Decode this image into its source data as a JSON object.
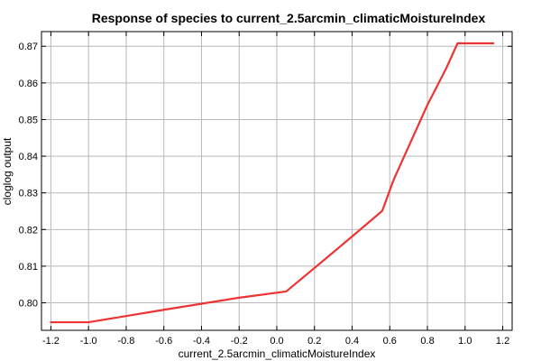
{
  "chart_data": {
    "type": "line",
    "title": "Response of species to current_2.5arcmin_climaticMoistureIndex",
    "xlabel": "current_2.5arcmin_climaticMoistureIndex",
    "ylabel": "cloglog output",
    "xlim": [
      -1.25,
      1.25
    ],
    "ylim": [
      0.7925,
      0.874
    ],
    "xticks": [
      -1.2,
      -1.0,
      -0.8,
      -0.6,
      -0.4,
      -0.2,
      0.0,
      0.2,
      0.4,
      0.6,
      0.8,
      1.0,
      1.2
    ],
    "xtick_labels": [
      "-1.2",
      "-1.0",
      "-0.8",
      "-0.6",
      "-0.4",
      "-0.2",
      "0.0",
      "0.2",
      "0.4",
      "0.6",
      "0.8",
      "1.0",
      "1.2"
    ],
    "yticks": [
      0.8,
      0.81,
      0.82,
      0.83,
      0.84,
      0.85,
      0.86,
      0.87
    ],
    "ytick_labels": [
      "0.80",
      "0.81",
      "0.82",
      "0.83",
      "0.84",
      "0.85",
      "0.86",
      "0.87"
    ],
    "grid": true,
    "series": [
      {
        "color": "#ee3333",
        "x": [
          -1.2,
          -1.0,
          -0.6,
          -0.2,
          0.05,
          0.2,
          0.4,
          0.56,
          0.62,
          0.8,
          0.9,
          0.96,
          1.0,
          1.15
        ],
        "y": [
          0.7947,
          0.7947,
          0.7981,
          0.8014,
          0.8031,
          0.8095,
          0.8181,
          0.8251,
          0.8335,
          0.854,
          0.864,
          0.8708,
          0.8708,
          0.8708
        ]
      }
    ]
  }
}
